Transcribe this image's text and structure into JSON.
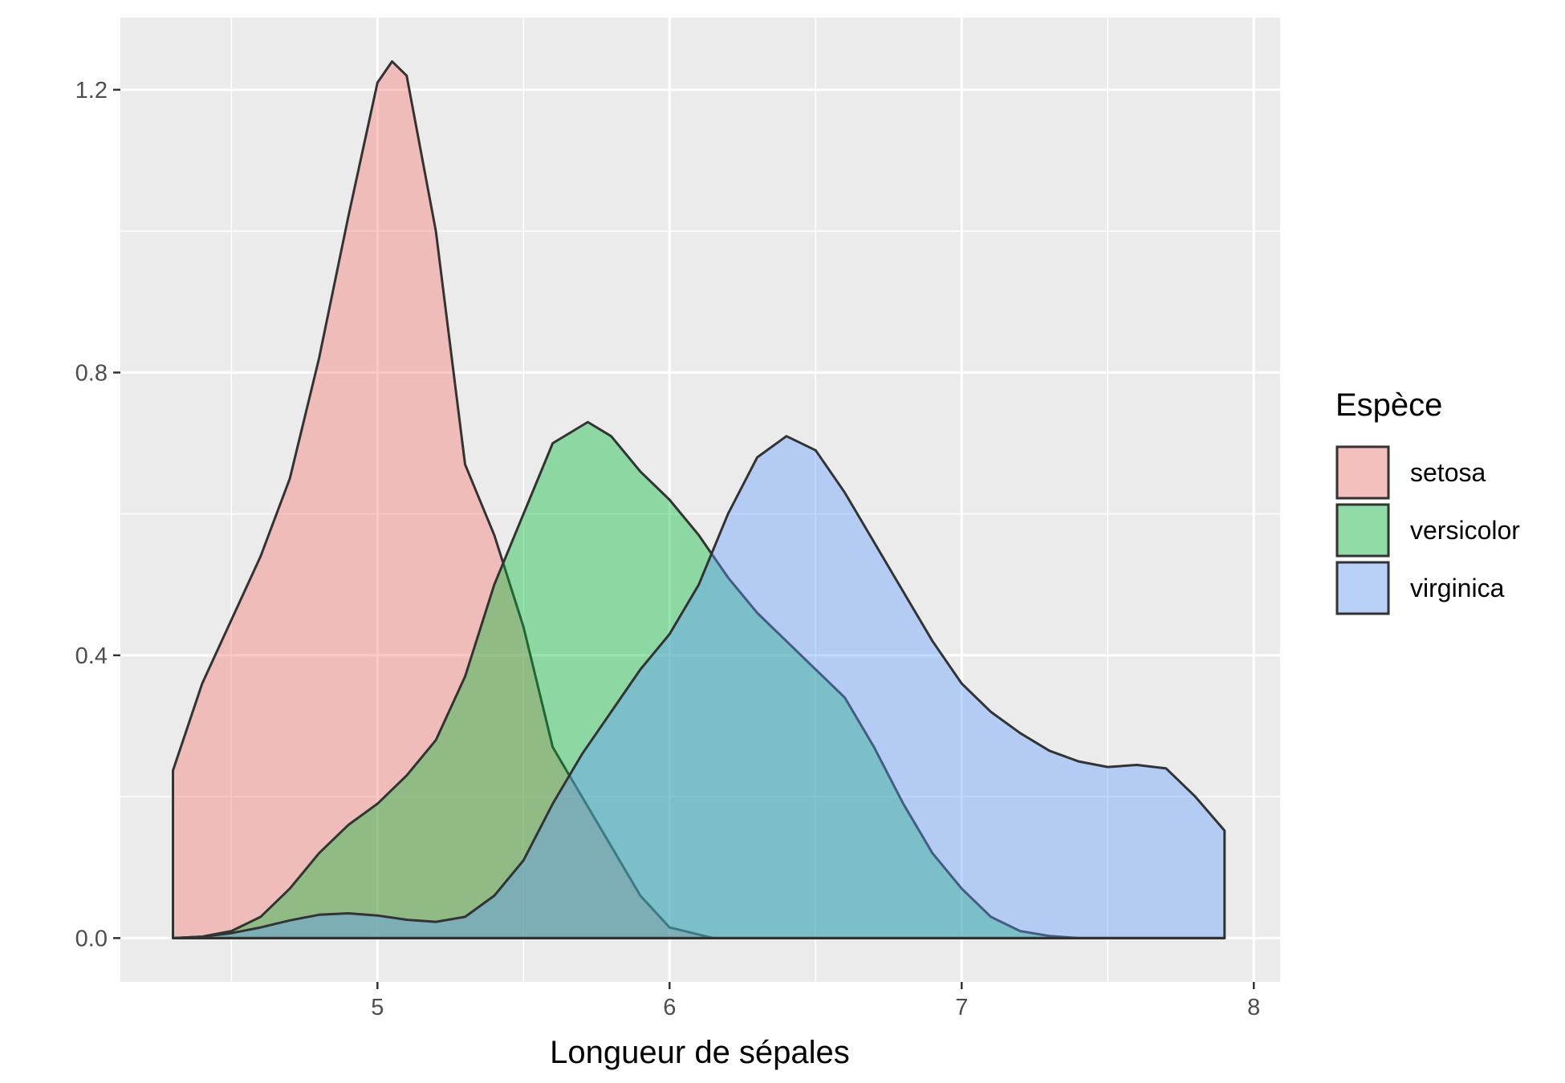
{
  "chart_data": {
    "type": "area",
    "subtype": "density",
    "title": "",
    "xlabel": "Longueur de sépales",
    "ylabel": "",
    "xlim": [
      4.12,
      8.09
    ],
    "ylim": [
      -0.062,
      1.302
    ],
    "x_ticks": [
      5,
      6,
      7,
      8
    ],
    "x_tick_labels": [
      "5",
      "6",
      "7",
      "8"
    ],
    "y_ticks": [
      0.0,
      0.4,
      0.8,
      1.2
    ],
    "y_tick_labels": [
      "0.0",
      "0.4",
      "0.8",
      "1.2"
    ],
    "grid": true,
    "legend": {
      "title": "Espèce",
      "placement": "right",
      "entries": [
        "setosa",
        "versicolor",
        "virginica"
      ]
    },
    "series": [
      {
        "name": "setosa",
        "color": "#F8766D",
        "points": [
          [
            4.3,
            0.237
          ],
          [
            4.4,
            0.36
          ],
          [
            4.5,
            0.45
          ],
          [
            4.6,
            0.54
          ],
          [
            4.7,
            0.65
          ],
          [
            4.8,
            0.82
          ],
          [
            4.9,
            1.02
          ],
          [
            5.0,
            1.21
          ],
          [
            5.05,
            1.24
          ],
          [
            5.1,
            1.22
          ],
          [
            5.2,
            1.0
          ],
          [
            5.3,
            0.67
          ],
          [
            5.4,
            0.57
          ],
          [
            5.5,
            0.44
          ],
          [
            5.6,
            0.27
          ],
          [
            5.7,
            0.2
          ],
          [
            5.8,
            0.13
          ],
          [
            5.9,
            0.06
          ],
          [
            6.0,
            0.015
          ],
          [
            6.15,
            0.0
          ],
          [
            7.9,
            0.0
          ]
        ]
      },
      {
        "name": "versicolor",
        "color": "#00BA38",
        "points": [
          [
            4.3,
            0.0
          ],
          [
            4.4,
            0.002
          ],
          [
            4.5,
            0.01
          ],
          [
            4.6,
            0.03
          ],
          [
            4.7,
            0.07
          ],
          [
            4.8,
            0.12
          ],
          [
            4.9,
            0.16
          ],
          [
            5.0,
            0.19
          ],
          [
            5.1,
            0.23
          ],
          [
            5.2,
            0.28
          ],
          [
            5.3,
            0.37
          ],
          [
            5.4,
            0.5
          ],
          [
            5.5,
            0.6
          ],
          [
            5.6,
            0.7
          ],
          [
            5.72,
            0.73
          ],
          [
            5.8,
            0.71
          ],
          [
            5.9,
            0.66
          ],
          [
            6.0,
            0.62
          ],
          [
            6.1,
            0.57
          ],
          [
            6.2,
            0.51
          ],
          [
            6.3,
            0.46
          ],
          [
            6.4,
            0.42
          ],
          [
            6.5,
            0.38
          ],
          [
            6.6,
            0.34
          ],
          [
            6.7,
            0.27
          ],
          [
            6.8,
            0.19
          ],
          [
            6.9,
            0.12
          ],
          [
            7.0,
            0.07
          ],
          [
            7.1,
            0.03
          ],
          [
            7.2,
            0.01
          ],
          [
            7.3,
            0.003
          ],
          [
            7.4,
            0.0
          ],
          [
            7.9,
            0.0
          ]
        ]
      },
      {
        "name": "virginica",
        "color": "#619CFF",
        "points": [
          [
            4.3,
            0.0
          ],
          [
            4.4,
            0.002
          ],
          [
            4.5,
            0.007
          ],
          [
            4.6,
            0.015
          ],
          [
            4.7,
            0.025
          ],
          [
            4.8,
            0.033
          ],
          [
            4.9,
            0.035
          ],
          [
            5.0,
            0.032
          ],
          [
            5.1,
            0.026
          ],
          [
            5.2,
            0.023
          ],
          [
            5.3,
            0.03
          ],
          [
            5.4,
            0.06
          ],
          [
            5.5,
            0.11
          ],
          [
            5.6,
            0.19
          ],
          [
            5.7,
            0.26
          ],
          [
            5.8,
            0.32
          ],
          [
            5.9,
            0.38
          ],
          [
            6.0,
            0.43
          ],
          [
            6.1,
            0.5
          ],
          [
            6.2,
            0.6
          ],
          [
            6.3,
            0.68
          ],
          [
            6.4,
            0.71
          ],
          [
            6.5,
            0.69
          ],
          [
            6.6,
            0.63
          ],
          [
            6.7,
            0.56
          ],
          [
            6.8,
            0.49
          ],
          [
            6.9,
            0.42
          ],
          [
            7.0,
            0.36
          ],
          [
            7.1,
            0.32
          ],
          [
            7.2,
            0.29
          ],
          [
            7.3,
            0.265
          ],
          [
            7.4,
            0.25
          ],
          [
            7.5,
            0.242
          ],
          [
            7.6,
            0.245
          ],
          [
            7.7,
            0.24
          ],
          [
            7.8,
            0.2
          ],
          [
            7.9,
            0.152
          ]
        ]
      }
    ]
  }
}
